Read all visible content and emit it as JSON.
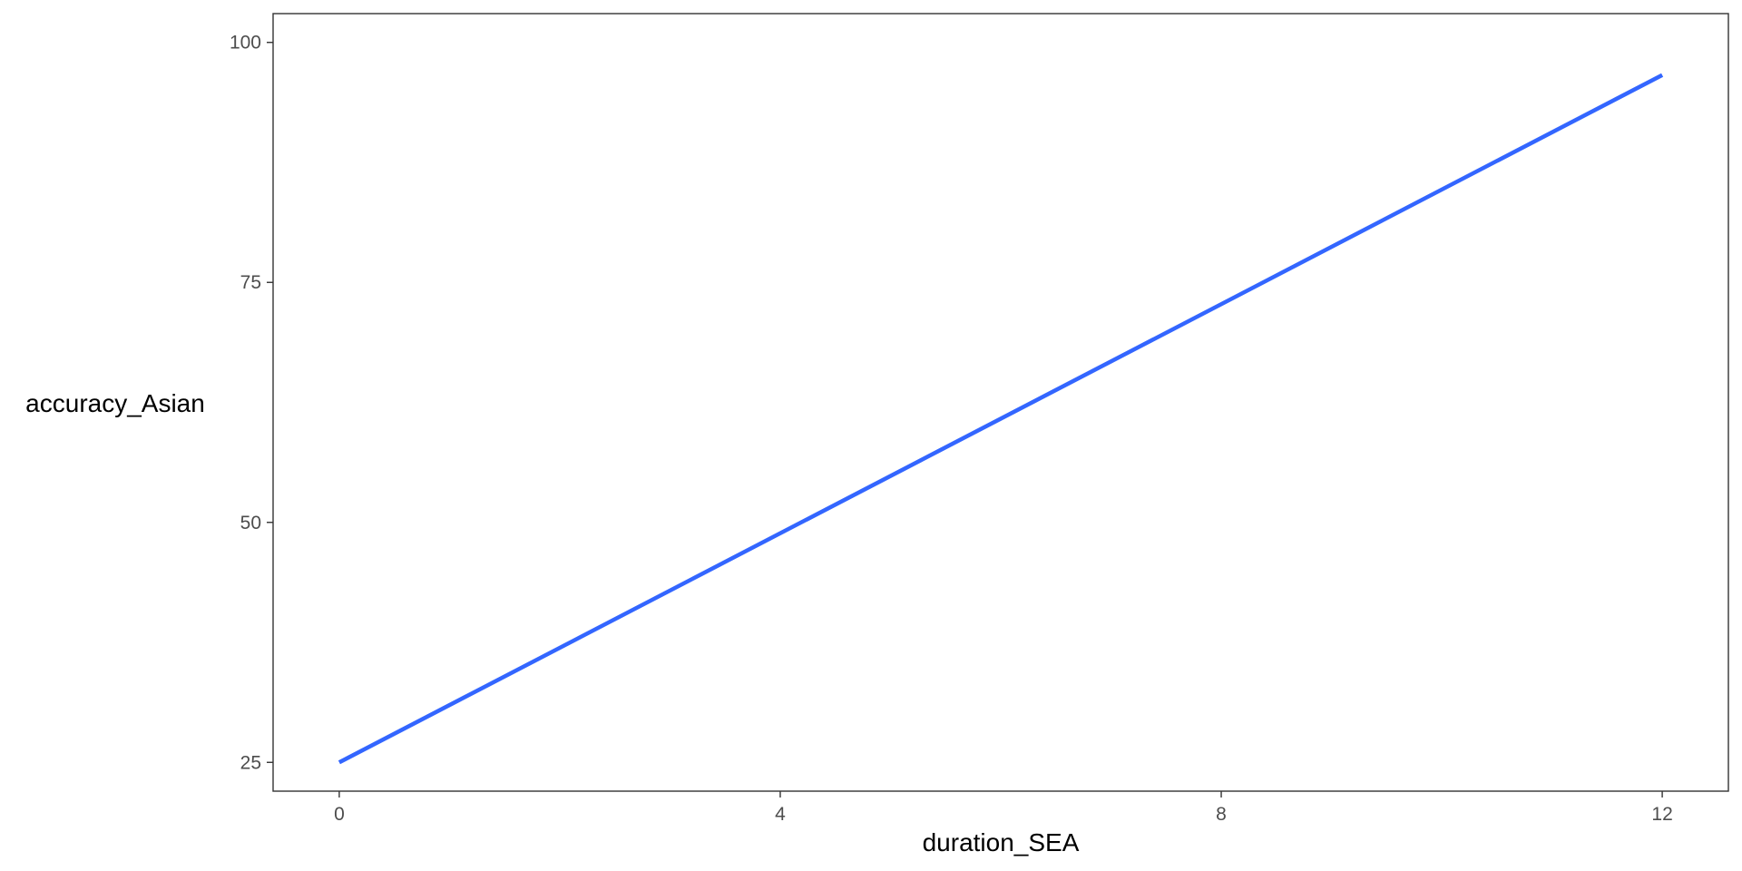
{
  "chart_data": {
    "type": "line",
    "xlabel": "duration_SEA",
    "ylabel": "accuracy_Asian",
    "xlim": [
      -0.6,
      12.6
    ],
    "ylim": [
      22,
      103
    ],
    "x_ticks": [
      0,
      4,
      8,
      12
    ],
    "y_ticks": [
      25,
      50,
      75,
      100
    ],
    "grid": false,
    "series": [
      {
        "x": [
          0,
          12
        ],
        "y": [
          25,
          96.6
        ],
        "color": "#3366ff"
      }
    ]
  }
}
